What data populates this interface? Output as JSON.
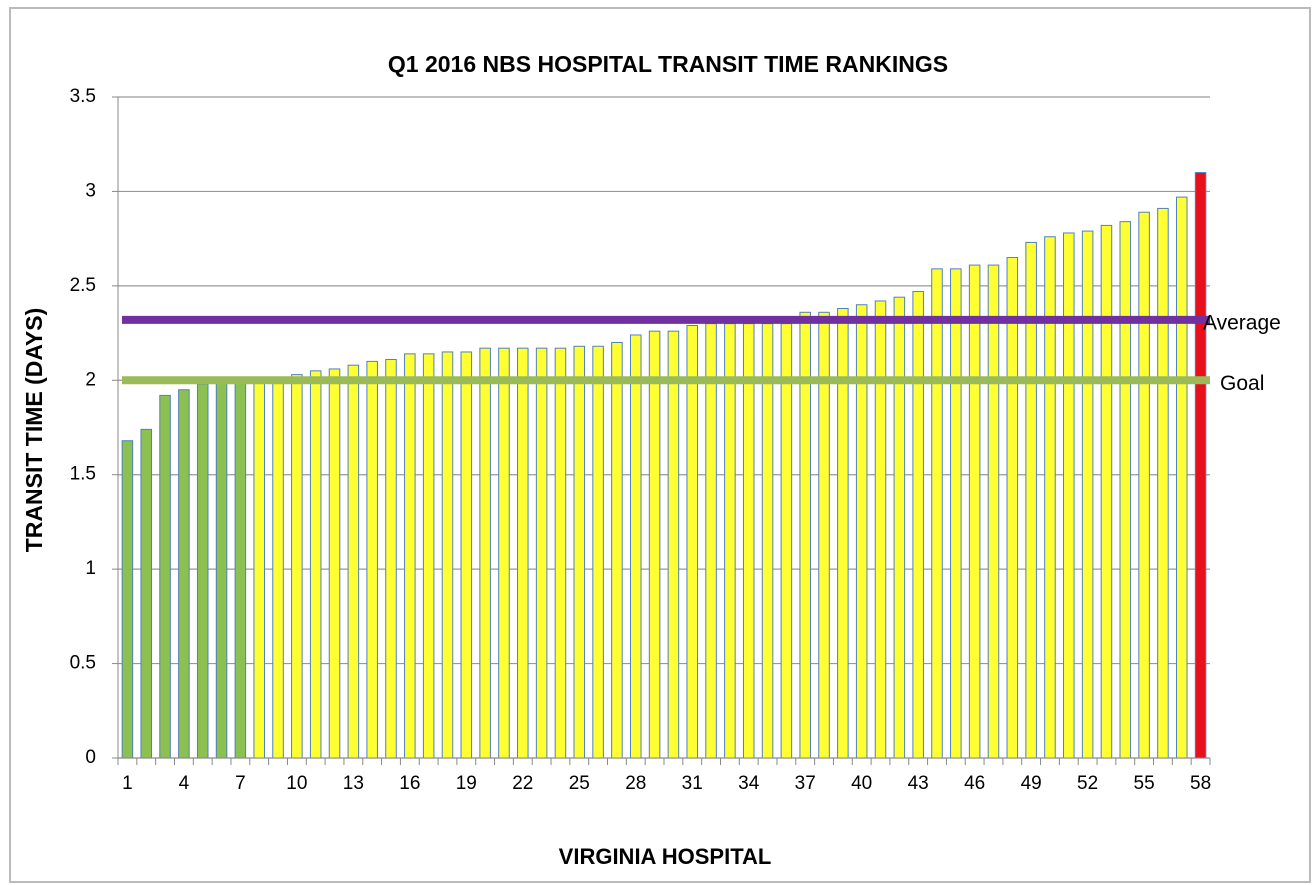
{
  "chart_data": {
    "type": "bar",
    "title": "Q1 2016  NBS HOSPITAL TRANSIT TIME RANKINGS",
    "x_label": "VIRGINIA HOSPITAL",
    "y_label": "TRANSIT TIME  (DAYS)",
    "categories": [
      "1",
      null,
      null,
      "4",
      null,
      null,
      "7",
      null,
      null,
      "10",
      null,
      null,
      "13",
      null,
      null,
      "16",
      null,
      null,
      "19",
      null,
      null,
      "22",
      null,
      null,
      "25",
      null,
      null,
      "28",
      null,
      null,
      "31",
      null,
      null,
      "34",
      null,
      null,
      "37",
      null,
      null,
      "40",
      null,
      null,
      "43",
      null,
      null,
      "46",
      null,
      null,
      "49",
      null,
      null,
      "52",
      null,
      null,
      "55",
      null,
      null,
      "58"
    ],
    "values": [
      1.68,
      1.74,
      1.92,
      1.95,
      1.98,
      1.99,
      2.0,
      2.0,
      2.0,
      2.03,
      2.05,
      2.06,
      2.08,
      2.1,
      2.11,
      2.14,
      2.14,
      2.15,
      2.15,
      2.17,
      2.17,
      2.17,
      2.17,
      2.17,
      2.18,
      2.18,
      2.2,
      2.24,
      2.26,
      2.26,
      2.29,
      2.3,
      2.3,
      2.3,
      2.3,
      2.3,
      2.36,
      2.36,
      2.38,
      2.4,
      2.42,
      2.44,
      2.47,
      2.59,
      2.59,
      2.61,
      2.61,
      2.65,
      2.73,
      2.76,
      2.78,
      2.79,
      2.82,
      2.84,
      2.89,
      2.91,
      2.97,
      3.1
    ],
    "colors": [
      "#8cc152",
      "#8cc152",
      "#8cc152",
      "#8cc152",
      "#8cc152",
      "#8cc152",
      "#8cc152",
      "#ffff33",
      "#ffff33",
      "#ffff33",
      "#ffff33",
      "#ffff33",
      "#ffff33",
      "#ffff33",
      "#ffff33",
      "#ffff33",
      "#ffff33",
      "#ffff33",
      "#ffff33",
      "#ffff33",
      "#ffff33",
      "#ffff33",
      "#ffff33",
      "#ffff33",
      "#ffff33",
      "#ffff33",
      "#ffff33",
      "#ffff33",
      "#ffff33",
      "#ffff33",
      "#ffff33",
      "#ffff33",
      "#ffff33",
      "#ffff33",
      "#ffff33",
      "#ffff33",
      "#ffff33",
      "#ffff33",
      "#ffff33",
      "#ffff33",
      "#ffff33",
      "#ffff33",
      "#ffff33",
      "#ffff33",
      "#ffff33",
      "#ffff33",
      "#ffff33",
      "#ffff33",
      "#ffff33",
      "#ffff33",
      "#ffff33",
      "#ffff33",
      "#ffff33",
      "#ffff33",
      "#ffff33",
      "#ffff33",
      "#ffff33",
      "#e8101a"
    ],
    "ylim": [
      0,
      3.5
    ],
    "yticks": [
      0,
      0.5,
      1,
      1.5,
      2,
      2.5,
      3,
      3.5
    ],
    "grid": true,
    "reference_lines": [
      {
        "label": "Average",
        "value": 2.32,
        "color": "#7030a0"
      },
      {
        "label": "Goal",
        "value": 2.0,
        "color": "#9bbb59"
      }
    ]
  }
}
